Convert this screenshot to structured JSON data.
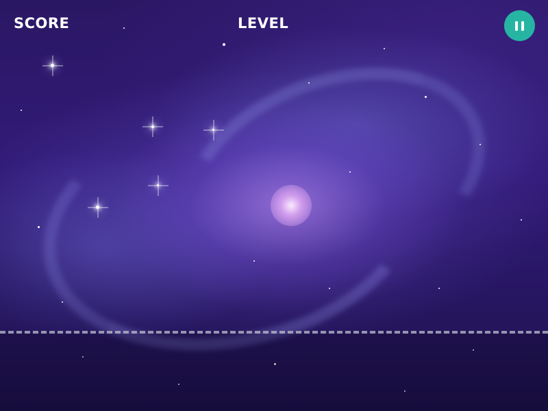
{
  "hud": {
    "score_label": "SCORE",
    "level_label": "LEVEL",
    "pause_icon": "pause-icon"
  },
  "colors": {
    "pause_button": "#26b5a3",
    "hud_text": "#ffffff",
    "danger_line": "#bebec8",
    "background": "#2a1763"
  }
}
